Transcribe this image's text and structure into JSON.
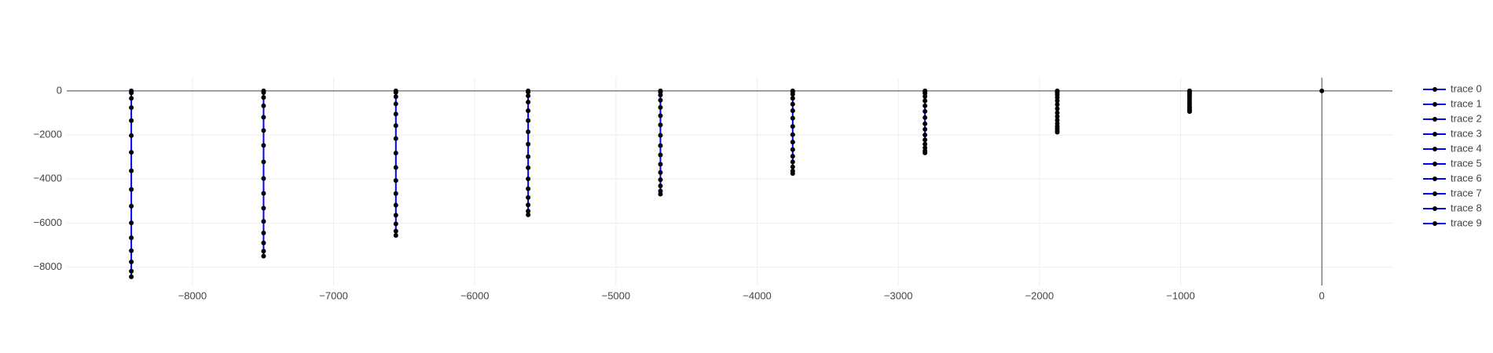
{
  "chart_data": {
    "type": "line",
    "xlim": [
      -8890,
      500
    ],
    "ylim": [
      -8830,
      600
    ],
    "xticks": [
      {
        "value": -8000,
        "label": "−8000"
      },
      {
        "value": -7000,
        "label": "−7000"
      },
      {
        "value": -6000,
        "label": "−6000"
      },
      {
        "value": -5000,
        "label": "−5000"
      },
      {
        "value": -4000,
        "label": "−4000"
      },
      {
        "value": -3000,
        "label": "−3000"
      },
      {
        "value": -2000,
        "label": "−2000"
      },
      {
        "value": -1000,
        "label": "−1000"
      },
      0
    ],
    "yticks": [
      {
        "value": -8000,
        "label": "−8000"
      },
      {
        "value": -6000,
        "label": "−6000"
      },
      {
        "value": -4000,
        "label": "−4000"
      },
      {
        "value": -2000,
        "label": "−2000"
      },
      0
    ],
    "grid": true,
    "zeroline": true,
    "legend": "right",
    "marker_color": "#000000",
    "series": [
      {
        "name": "trace 0",
        "color": "#0000ff",
        "x": [
          -8433,
          -8433,
          -8433,
          -8433,
          -8433,
          -8433,
          -8433,
          -8433,
          -8433,
          -8433,
          -8433,
          -8433,
          -8433,
          -8433,
          -8433,
          -8433
        ],
        "values": [
          0,
          -84,
          -337,
          -759,
          -1349,
          -2024,
          -2783,
          -3626,
          -4469,
          -5228,
          -5987,
          -6662,
          -7252,
          -7758,
          -8180,
          -8433
        ]
      },
      {
        "name": "trace 1",
        "color": "#0000ff",
        "x": [
          -7496,
          -7496,
          -7496,
          -7496,
          -7496,
          -7496,
          -7496,
          -7496,
          -7496,
          -7496,
          -7496,
          -7496,
          -7496,
          -7496,
          -7496,
          -7496
        ],
        "values": [
          0,
          -75,
          -300,
          -675,
          -1199,
          -1799,
          -2474,
          -3223,
          -3973,
          -4648,
          -5322,
          -5922,
          -6447,
          -6896,
          -7271,
          -7496
        ]
      },
      {
        "name": "trace 2",
        "color": "#0000ff",
        "x": [
          -6559,
          -6559,
          -6559,
          -6559,
          -6559,
          -6559,
          -6559,
          -6559,
          -6559,
          -6559,
          -6559,
          -6559,
          -6559,
          -6559,
          -6559,
          -6559
        ],
        "values": [
          0,
          -66,
          -262,
          -590,
          -1049,
          -1574,
          -2164,
          -2820,
          -3476,
          -4067,
          -4657,
          -5182,
          -5641,
          -6034,
          -6362,
          -6559
        ]
      },
      {
        "name": "trace 3",
        "color": "#0000ff",
        "x": [
          -5622,
          -5622,
          -5622,
          -5622,
          -5622,
          -5622,
          -5622,
          -5622,
          -5622,
          -5622,
          -5622,
          -5622,
          -5622,
          -5622,
          -5622,
          -5622
        ],
        "values": [
          0,
          -56,
          -225,
          -506,
          -900,
          -1349,
          -1855,
          -2417,
          -2980,
          -3486,
          -3992,
          -4441,
          -4835,
          -5172,
          -5453,
          -5622
        ]
      },
      {
        "name": "trace 4",
        "color": "#0000ff",
        "x": [
          -4685,
          -4685,
          -4685,
          -4685,
          -4685,
          -4685,
          -4685,
          -4685,
          -4685,
          -4685,
          -4685,
          -4685,
          -4685,
          -4685,
          -4685,
          -4685
        ],
        "values": [
          0,
          -47,
          -187,
          -422,
          -750,
          -1124,
          -1546,
          -2015,
          -2483,
          -2905,
          -3326,
          -3701,
          -4029,
          -4310,
          -4544,
          -4685
        ]
      },
      {
        "name": "trace 5",
        "color": "#0000ff",
        "x": [
          -3748,
          -3748,
          -3748,
          -3748,
          -3748,
          -3748,
          -3748,
          -3748,
          -3748,
          -3748,
          -3748,
          -3748,
          -3748,
          -3748,
          -3748,
          -3748
        ],
        "values": [
          0,
          -37,
          -150,
          -337,
          -600,
          -900,
          -1237,
          -1612,
          -1986,
          -2324,
          -2661,
          -2961,
          -3223,
          -3448,
          -3636,
          -3748
        ]
      },
      {
        "name": "trace 6",
        "color": "#0000ff",
        "x": [
          -2811,
          -2811,
          -2811,
          -2811,
          -2811,
          -2811,
          -2811,
          -2811,
          -2811,
          -2811,
          -2811,
          -2811,
          -2811,
          -2811,
          -2811,
          -2811
        ],
        "values": [
          0,
          -28,
          -112,
          -253,
          -450,
          -675,
          -928,
          -1209,
          -1490,
          -1743,
          -1996,
          -2221,
          -2417,
          -2586,
          -2727,
          -2811
        ]
      },
      {
        "name": "trace 7",
        "color": "#0000ff",
        "x": [
          -1874,
          -1874,
          -1874,
          -1874,
          -1874,
          -1874,
          -1874,
          -1874,
          -1874,
          -1874,
          -1874,
          -1874,
          -1874,
          -1874,
          -1874,
          -1874
        ],
        "values": [
          0,
          -19,
          -75,
          -169,
          -300,
          -450,
          -618,
          -806,
          -993,
          -1162,
          -1331,
          -1480,
          -1612,
          -1724,
          -1818,
          -1874
        ]
      },
      {
        "name": "trace 8",
        "color": "#0000ff",
        "x": [
          -937,
          -937,
          -937,
          -937,
          -937,
          -937,
          -937,
          -937,
          -937,
          -937,
          -937,
          -937,
          -937,
          -937,
          -937,
          -937
        ],
        "values": [
          0,
          -9,
          -37,
          -84,
          -150,
          -225,
          -309,
          -403,
          -497,
          -581,
          -665,
          -740,
          -806,
          -862,
          -909,
          -937
        ]
      },
      {
        "name": "trace 9",
        "color": "#0000ff",
        "x": [
          0
        ],
        "values": [
          0
        ]
      }
    ]
  }
}
